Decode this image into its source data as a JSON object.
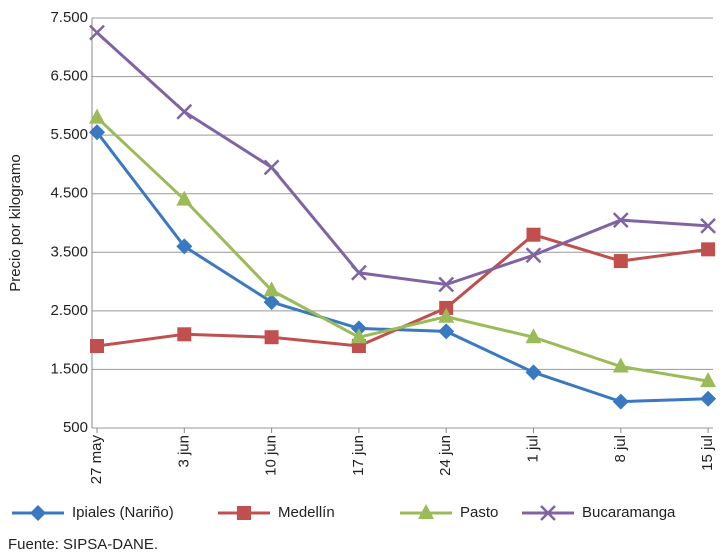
{
  "chart_data": {
    "type": "line",
    "y_label": "Precio por kilogramo",
    "source": "Fuente: SIPSA-DANE.",
    "categories": [
      "27 may",
      "3 jun",
      "10 jun",
      "17 jun",
      "24 jun",
      "1 jul",
      "8 jul",
      "15 jul"
    ],
    "ylim": [
      500,
      7500
    ],
    "yticks": [
      {
        "value": 500,
        "label": "500"
      },
      {
        "value": 1500,
        "label": "1.500"
      },
      {
        "value": 2500,
        "label": "2.500"
      },
      {
        "value": 3500,
        "label": "3.500"
      },
      {
        "value": 4500,
        "label": "4.500"
      },
      {
        "value": 5500,
        "label": "5.500"
      },
      {
        "value": 6500,
        "label": "6.500"
      },
      {
        "value": 7500,
        "label": "7.500"
      }
    ],
    "grid": true,
    "series": [
      {
        "name": "Ipiales (Nariño)",
        "color": "#3a78c0",
        "marker": "diamond",
        "values": [
          5550,
          3600,
          2650,
          2200,
          2150,
          1450,
          950,
          1000
        ]
      },
      {
        "name": "Medellín",
        "color": "#c0504d",
        "marker": "square",
        "values": [
          1900,
          2100,
          2050,
          1900,
          2550,
          3800,
          3350,
          3550
        ]
      },
      {
        "name": "Pasto",
        "color": "#9bbb59",
        "marker": "triangle",
        "values": [
          5800,
          4400,
          2850,
          2050,
          2400,
          2050,
          1550,
          1300
        ]
      },
      {
        "name": "Bucaramanga",
        "color": "#8064a2",
        "marker": "x",
        "values": [
          7250,
          5900,
          4950,
          3150,
          2950,
          3450,
          4050,
          3950
        ]
      }
    ]
  }
}
